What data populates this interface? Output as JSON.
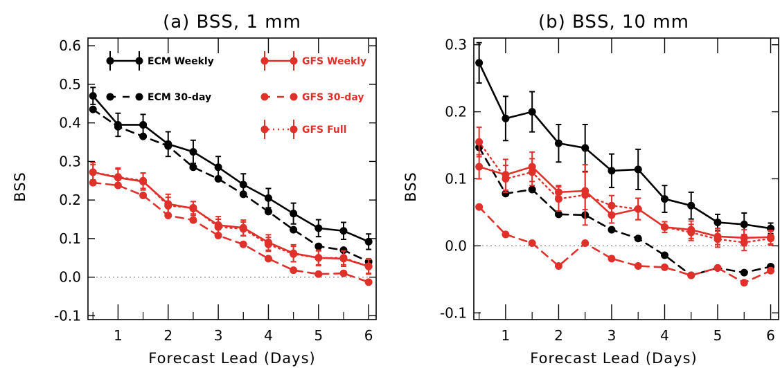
{
  "colors": {
    "ecm": "#000000",
    "gfs": "#e0302a",
    "zero_line": "#666666"
  },
  "chart_data": [
    {
      "type": "line",
      "title": "(a) BSS, 1 mm",
      "xlabel": "Forecast Lead (Days)",
      "ylabel": "BSS",
      "xlim": [
        0.4,
        6.15
      ],
      "ylim": [
        -0.11,
        0.62
      ],
      "xticks": [
        1,
        2,
        3,
        4,
        5,
        6
      ],
      "xtick_labels": [
        "1",
        "2",
        "3",
        "4",
        "5",
        "6"
      ],
      "yticks": [
        -0.1,
        0.0,
        0.1,
        0.2,
        0.3,
        0.4,
        0.5,
        0.6
      ],
      "ytick_labels": [
        "-0.1",
        "0.0",
        "0.1",
        "0.2",
        "0.3",
        "0.4",
        "0.5",
        "0.6"
      ],
      "zero_line": true,
      "x": [
        0.5,
        1.0,
        1.5,
        2.0,
        2.5,
        3.0,
        3.5,
        4.0,
        4.5,
        5.0,
        5.5,
        6.0
      ],
      "series": [
        {
          "name": "ECM Weekly",
          "color": "ecm",
          "style": "solid",
          "values": [
            0.47,
            0.395,
            0.395,
            0.345,
            0.325,
            0.285,
            0.24,
            0.205,
            0.165,
            0.127,
            0.12,
            0.092
          ],
          "err": [
            0.022,
            0.03,
            0.027,
            0.032,
            0.03,
            0.028,
            0.028,
            0.025,
            0.027,
            0.022,
            0.022,
            0.02
          ]
        },
        {
          "name": "ECM 30-day",
          "color": "ecm",
          "style": "dashed",
          "values": [
            0.435,
            0.39,
            0.365,
            0.34,
            0.285,
            0.255,
            0.215,
            0.17,
            0.123,
            0.08,
            0.07,
            0.04
          ]
        },
        {
          "name": "GFS Weekly",
          "color": "gfs",
          "style": "solid",
          "values": [
            0.272,
            0.258,
            0.248,
            0.19,
            0.178,
            0.135,
            0.128,
            0.09,
            0.062,
            0.05,
            0.048,
            0.028
          ],
          "err": [
            0.025,
            0.025,
            0.022,
            0.025,
            0.018,
            0.022,
            0.02,
            0.02,
            0.022,
            0.02,
            0.02,
            0.02
          ]
        },
        {
          "name": "GFS 30-day",
          "color": "gfs",
          "style": "dashed",
          "values": [
            0.245,
            0.238,
            0.212,
            0.16,
            0.148,
            0.108,
            0.085,
            0.048,
            0.018,
            0.008,
            0.01,
            -0.013
          ]
        },
        {
          "name": "GFS Full",
          "color": "gfs",
          "style": "dotted",
          "values": [
            0.272,
            0.26,
            0.25,
            0.185,
            0.18,
            0.13,
            0.125,
            0.085,
            0.06,
            0.05,
            0.05,
            0.028
          ],
          "err": [
            0.02,
            0.02,
            0.02,
            0.022,
            0.016,
            0.02,
            0.018,
            0.018,
            0.02,
            0.018,
            0.018,
            0.018
          ]
        }
      ],
      "legend": [
        {
          "label": "ECM Weekly",
          "series": 0
        },
        {
          "label": "ECM 30-day",
          "series": 1
        },
        {
          "label": "GFS Weekly",
          "series": 2
        },
        {
          "label": "GFS 30-day",
          "series": 3
        },
        {
          "label": "GFS Full",
          "series": 4
        }
      ]
    },
    {
      "type": "line",
      "title": "(b) BSS, 10 mm",
      "xlabel": "Forecast Lead (Days)",
      "ylabel": "BSS",
      "xlim": [
        0.4,
        6.15
      ],
      "ylim": [
        -0.11,
        0.31
      ],
      "xticks": [
        1,
        2,
        3,
        4,
        5,
        6
      ],
      "xtick_labels": [
        "1",
        "2",
        "3",
        "4",
        "5",
        "6"
      ],
      "yticks": [
        -0.1,
        0.0,
        0.1,
        0.2,
        0.3
      ],
      "ytick_labels": [
        "-0.1",
        "0.0",
        "0.1",
        "0.2",
        "0.3"
      ],
      "zero_line": true,
      "x": [
        0.5,
        1.0,
        1.5,
        2.0,
        2.5,
        3.0,
        3.5,
        4.0,
        4.5,
        5.0,
        5.5,
        6.0
      ],
      "series": [
        {
          "name": "ECM Weekly",
          "color": "ecm",
          "style": "solid",
          "values": [
            0.273,
            0.19,
            0.2,
            0.153,
            0.146,
            0.112,
            0.114,
            0.07,
            0.06,
            0.035,
            0.032,
            0.026
          ],
          "err": [
            0.03,
            0.033,
            0.03,
            0.028,
            0.035,
            0.025,
            0.03,
            0.02,
            0.02,
            0.012,
            0.017,
            0.008
          ]
        },
        {
          "name": "ECM 30-day",
          "color": "ecm",
          "style": "dashed",
          "values": [
            0.147,
            0.078,
            0.084,
            0.047,
            0.046,
            0.024,
            0.011,
            -0.014,
            -0.044,
            -0.033,
            -0.04,
            -0.031
          ]
        },
        {
          "name": "GFS Weekly",
          "color": "gfs",
          "style": "solid",
          "values": [
            0.118,
            0.106,
            0.118,
            0.08,
            0.082,
            0.046,
            0.055,
            0.028,
            0.024,
            0.014,
            0.012,
            0.013
          ],
          "err": [
            0.018,
            0.023,
            0.022,
            0.01,
            0.028,
            0.012,
            0.016,
            0.008,
            0.013,
            0.012,
            0.012,
            0.01
          ]
        },
        {
          "name": "GFS 30-day",
          "color": "gfs",
          "style": "dashed",
          "values": [
            0.058,
            0.017,
            0.004,
            -0.03,
            0.004,
            -0.019,
            -0.03,
            -0.032,
            -0.044,
            -0.033,
            -0.055,
            -0.037
          ]
        },
        {
          "name": "GFS Full",
          "color": "gfs",
          "style": "dotted",
          "values": [
            0.155,
            0.1,
            0.11,
            0.07,
            0.076,
            0.06,
            0.055,
            0.028,
            0.02,
            0.01,
            0.005,
            0.011
          ],
          "err": [
            0.022,
            0.02,
            0.02,
            0.018,
            0.045,
            0.015,
            0.016,
            0.008,
            0.012,
            0.012,
            0.012,
            0.01
          ]
        }
      ]
    }
  ]
}
